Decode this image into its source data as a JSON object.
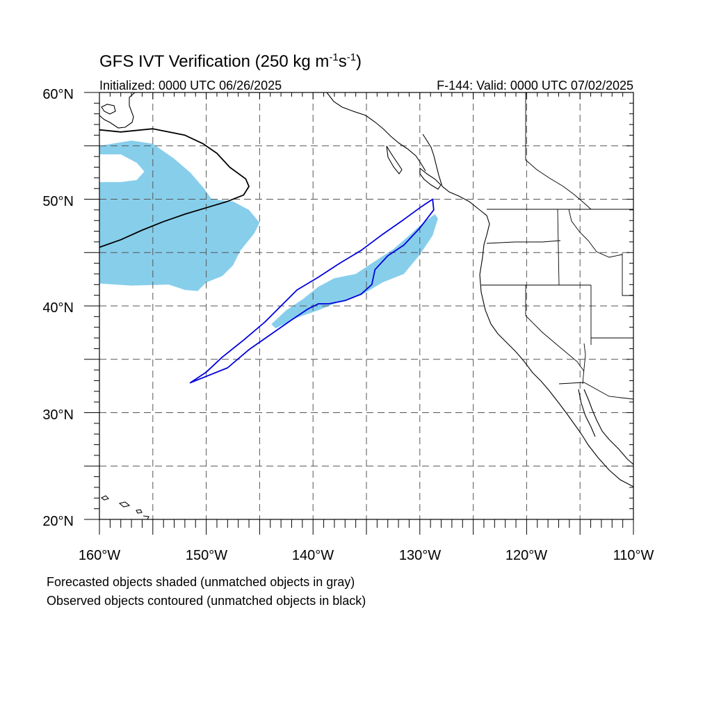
{
  "title": {
    "main": "GFS IVT Verification (250 kg m",
    "unit_m_exp": "-1",
    "unit_s": "s",
    "unit_s_exp": "-1",
    "close": ")"
  },
  "subtitle_left": "Initialized: 0000 UTC 06/26/2025",
  "subtitle_right": "F-144: Valid: 0000 UTC 07/02/2025",
  "lat_labels": [
    "60°N",
    "50°N",
    "40°N",
    "30°N",
    "20°N"
  ],
  "lon_labels": [
    "160°W",
    "150°W",
    "140°W",
    "130°W",
    "120°W",
    "110°W"
  ],
  "legend": {
    "line1": "Forecasted objects shaded (unmatched objects in gray)",
    "line2": "Observed objects contoured (unmatched objects in black)"
  },
  "colors": {
    "forecast_fill": "#87ceeb",
    "observed_matched": "#0000dd",
    "observed_unmatched": "#000000",
    "coastline": "#000000",
    "grid": "#555555"
  },
  "chart_data": {
    "type": "map",
    "projection": "cylindrical-equidistant",
    "lon_range": [
      -160,
      -110
    ],
    "lat_range": [
      20,
      60
    ],
    "grid_lons": [
      -155,
      -150,
      -145,
      -140,
      -135,
      -130,
      -125,
      -120,
      -115
    ],
    "grid_lats": [
      25,
      30,
      35,
      40,
      45,
      50,
      55
    ],
    "forecast_objects": [
      {
        "name": "forecast-object-west",
        "points": [
          [
            -160,
            55
          ],
          [
            -157,
            55.5
          ],
          [
            -155,
            55.2
          ],
          [
            -153,
            53.8
          ],
          [
            -151.5,
            52.5
          ],
          [
            -150.2,
            51
          ],
          [
            -149.5,
            50
          ],
          [
            -147.5,
            49.8
          ],
          [
            -146,
            49
          ],
          [
            -145,
            47.8
          ],
          [
            -145.5,
            46.8
          ],
          [
            -146.8,
            45.2
          ],
          [
            -147.5,
            43.8
          ],
          [
            -148.5,
            42.8
          ],
          [
            -150,
            42.2
          ],
          [
            -150.8,
            41.4
          ],
          [
            -152,
            41.5
          ],
          [
            -153.5,
            42
          ],
          [
            -157,
            41.9
          ],
          [
            -160,
            42.1
          ]
        ]
      },
      {
        "name": "forecast-object-hole",
        "points": [
          [
            -160,
            54.2
          ],
          [
            -158,
            54.2
          ],
          [
            -156.5,
            53.4
          ],
          [
            -155.8,
            52.6
          ],
          [
            -156.5,
            51.8
          ],
          [
            -158,
            51.6
          ],
          [
            -160,
            51.6
          ]
        ]
      },
      {
        "name": "forecast-object-ar",
        "points": [
          [
            -143.9,
            38.3
          ],
          [
            -142.5,
            39.6
          ],
          [
            -141,
            40.6
          ],
          [
            -139.5,
            41.8
          ],
          [
            -138,
            42.6
          ],
          [
            -136,
            43
          ],
          [
            -134.5,
            44
          ],
          [
            -132.5,
            45.3
          ],
          [
            -131,
            46.6
          ],
          [
            -129.8,
            47.7
          ],
          [
            -128.6,
            48.6
          ],
          [
            -128.3,
            48.2
          ],
          [
            -128.8,
            46.6
          ],
          [
            -130,
            44.8
          ],
          [
            -131.5,
            43
          ],
          [
            -133.5,
            42.2
          ],
          [
            -135.5,
            41
          ],
          [
            -137.5,
            40.4
          ],
          [
            -139.5,
            39.6
          ],
          [
            -141.5,
            38.9
          ],
          [
            -143.5,
            37.9
          ]
        ]
      }
    ],
    "observed_objects": [
      {
        "name": "observed-object-matched",
        "matched": true,
        "points": [
          [
            -151.5,
            32.8
          ],
          [
            -150,
            33.8
          ],
          [
            -148.5,
            35.2
          ],
          [
            -146.5,
            36.8
          ],
          [
            -144.5,
            38.5
          ],
          [
            -143,
            40
          ],
          [
            -141.5,
            41.5
          ],
          [
            -139.5,
            42.7
          ],
          [
            -137.5,
            44
          ],
          [
            -135.5,
            45.2
          ],
          [
            -133.5,
            46.7
          ],
          [
            -131.5,
            48.1
          ],
          [
            -130,
            49.2
          ],
          [
            -128.8,
            50
          ],
          [
            -128.7,
            49
          ],
          [
            -130,
            47.3
          ],
          [
            -131.5,
            45.7
          ],
          [
            -133,
            44.7
          ],
          [
            -134.2,
            43.4
          ],
          [
            -134.5,
            42
          ],
          [
            -135.5,
            41.1
          ],
          [
            -137,
            40.5
          ],
          [
            -138.5,
            40.2
          ],
          [
            -139.5,
            40.2
          ],
          [
            -140.5,
            39.7
          ],
          [
            -142,
            38.7
          ],
          [
            -144,
            37.3
          ],
          [
            -146,
            35.9
          ],
          [
            -148,
            34.2
          ],
          [
            -150,
            33.4
          ],
          [
            -151.5,
            32.8
          ]
        ]
      },
      {
        "name": "observed-object-unmatched",
        "matched": false,
        "points": [
          [
            -160,
            45.5
          ],
          [
            -158,
            46.2
          ],
          [
            -156,
            47.1
          ],
          [
            -154,
            47.9
          ],
          [
            -152,
            48.6
          ],
          [
            -150,
            49.2
          ],
          [
            -148,
            49.8
          ],
          [
            -146.5,
            50.4
          ],
          [
            -146,
            51.2
          ],
          [
            -146.3,
            51.9
          ],
          [
            -147.8,
            53
          ],
          [
            -149,
            54.3
          ],
          [
            -150.3,
            55.2
          ],
          [
            -152,
            56
          ],
          [
            -155,
            56.6
          ],
          [
            -158,
            56.3
          ],
          [
            -160,
            56.5
          ]
        ]
      }
    ]
  }
}
